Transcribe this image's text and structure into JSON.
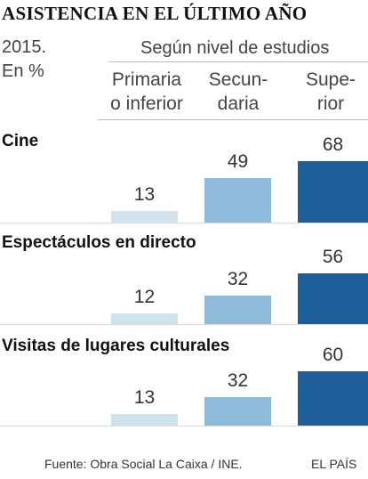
{
  "title": "ASISTENCIA EN EL ÚLTIMO AÑO",
  "year": "2015.",
  "unit": "En %",
  "subtitle": "Según nivel de estudios",
  "columns": [
    {
      "line1": "Primaria",
      "line2": "o inferior"
    },
    {
      "line1": "Secun-",
      "line2": "daria"
    },
    {
      "line1": "Supe-",
      "line2": "rior"
    }
  ],
  "colors": {
    "primaria": "#cfe3ee",
    "secundaria": "#8fb9d9",
    "superior": "#1f5f99"
  },
  "chart_data": {
    "type": "bar",
    "categories": [
      "Primaria o inferior",
      "Secundaria",
      "Superior"
    ],
    "series": [
      {
        "name": "Cine",
        "values": [
          13,
          49,
          68
        ]
      },
      {
        "name": "Espectáculos en directo",
        "values": [
          12,
          32,
          56
        ]
      },
      {
        "name": "Visitas de lugares culturales",
        "values": [
          13,
          32,
          60
        ]
      }
    ],
    "ylim": [
      0,
      68
    ],
    "grid": false,
    "legend": "none"
  },
  "source": "Fuente: Obra Social La Caixa / INE.",
  "credit": "EL PAÍS"
}
